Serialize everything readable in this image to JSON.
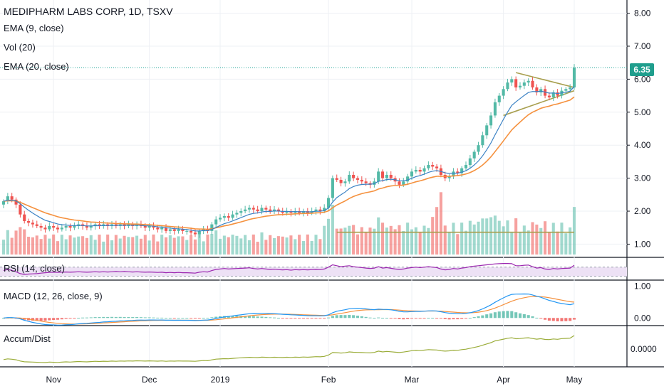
{
  "header": {
    "title": "MEDIPHARM LABS CORP, 1D, TSXV",
    "indicators": [
      "EMA (9, close)",
      "Vol (20)",
      "EMA (20, close)"
    ]
  },
  "last_price": "6.35",
  "panes": {
    "rsi_label": "RSI (14, close)",
    "macd_label": "MACD (12, 26, close, 9)",
    "ad_label": "Accum/Dist"
  },
  "colors": {
    "up": "#53b9a6",
    "down": "#ef5350",
    "ema9": "#3b82c4",
    "ema20": "#f5913e",
    "rsi": "#9c27b0",
    "macd": "#2196f3",
    "signal": "#f5913e",
    "ad": "#9bad3a",
    "trend": "#a89f4e",
    "dotted": "#26a69a"
  },
  "chart_data": [
    {
      "type": "candlestick",
      "title": "MEDIPHARM LABS CORP, 1D, TSXV",
      "y_ticks": [
        "8.00",
        "7.00",
        "6.00",
        "5.00",
        "4.00",
        "3.00",
        "2.00",
        "1.00"
      ],
      "ylim": [
        0.6,
        8.4
      ],
      "x_ticks": [
        "Nov",
        "Dec",
        "2019",
        "Feb",
        "Mar",
        "Apr",
        "May"
      ],
      "closes": [
        2.3,
        2.45,
        2.35,
        2.2,
        1.9,
        1.7,
        1.65,
        1.6,
        1.55,
        1.5,
        1.45,
        1.55,
        1.5,
        1.45,
        1.5,
        1.55,
        1.5,
        1.55,
        1.6,
        1.55,
        1.5,
        1.55,
        1.6,
        1.55,
        1.6,
        1.55,
        1.6,
        1.55,
        1.6,
        1.55,
        1.6,
        1.55,
        1.6,
        1.55,
        1.5,
        1.55,
        1.5,
        1.45,
        1.5,
        1.4,
        1.45,
        1.4,
        1.45,
        1.4,
        1.4,
        1.35,
        1.3,
        1.4,
        1.45,
        1.4,
        1.6,
        1.75,
        1.8,
        1.85,
        1.8,
        1.9,
        1.95,
        2.0,
        2.05,
        2.1,
        2.05,
        2.0,
        2.1,
        2.05,
        2.0,
        2.05,
        2.0,
        1.95,
        2.0,
        1.95,
        2.0,
        1.95,
        2.0,
        1.95,
        2.0,
        2.05,
        2.0,
        2.1,
        2.4,
        3.0,
        2.95,
        2.85,
        2.9,
        3.1,
        3.0,
        2.95,
        2.9,
        2.85,
        2.8,
        2.9,
        3.2,
        3.0,
        3.1,
        3.0,
        2.9,
        2.8,
        2.9,
        3.05,
        3.2,
        3.25,
        3.2,
        3.3,
        3.4,
        3.35,
        3.3,
        3.1,
        3.0,
        3.05,
        3.2,
        3.15,
        3.3,
        3.4,
        3.6,
        3.8,
        4.0,
        4.3,
        4.6,
        4.9,
        5.3,
        5.5,
        5.7,
        5.9,
        6.0,
        5.75,
        5.8,
        5.9,
        5.95,
        5.75,
        5.6,
        5.7,
        5.5,
        5.45,
        5.6,
        5.5,
        5.65,
        5.7,
        5.75,
        6.35
      ],
      "ema9_first_last": [
        2.3,
        5.75
      ],
      "ema20_first_last": [
        2.2,
        5.4
      ]
    },
    {
      "type": "line",
      "title": "RSI (14, close)",
      "values": [
        55,
        60,
        56,
        50,
        42,
        38,
        40,
        41,
        42,
        44,
        46,
        47,
        48,
        47,
        48,
        49,
        48,
        49,
        50,
        49,
        48,
        49,
        50,
        49,
        50,
        49,
        50,
        51,
        50,
        51,
        50,
        49,
        50,
        49,
        48,
        49,
        48,
        47,
        48,
        46,
        47,
        46,
        47,
        46,
        46,
        45,
        44,
        48,
        50,
        49,
        55,
        60,
        62,
        64,
        62,
        63,
        64,
        65,
        66,
        67,
        64,
        62,
        64,
        62,
        60,
        61,
        59,
        58,
        59,
        57,
        59,
        58,
        59,
        58,
        59,
        60,
        59,
        62,
        70,
        80,
        76,
        72,
        74,
        76,
        72,
        70,
        68,
        66,
        64,
        66,
        72,
        66,
        68,
        65,
        62,
        60,
        62,
        66,
        68,
        70,
        68,
        70,
        72,
        70,
        68,
        62,
        58,
        60,
        64,
        62,
        66,
        68,
        72,
        74,
        76,
        78,
        80,
        82,
        84,
        85,
        86,
        86,
        85,
        76,
        76,
        78,
        79,
        72,
        66,
        68,
        62,
        60,
        64,
        62,
        64,
        65,
        66,
        78
      ]
    },
    {
      "type": "line",
      "title": "MACD (12, 26, close, 9)",
      "y_ticks": [
        "1.00",
        "0.00"
      ],
      "macd_first_last": [
        0.3,
        0.45
      ],
      "signal_first_last": [
        0.32,
        0.48
      ]
    },
    {
      "type": "area",
      "title": "Accum/Dist",
      "y_ticks": [
        "0.0000"
      ]
    }
  ]
}
